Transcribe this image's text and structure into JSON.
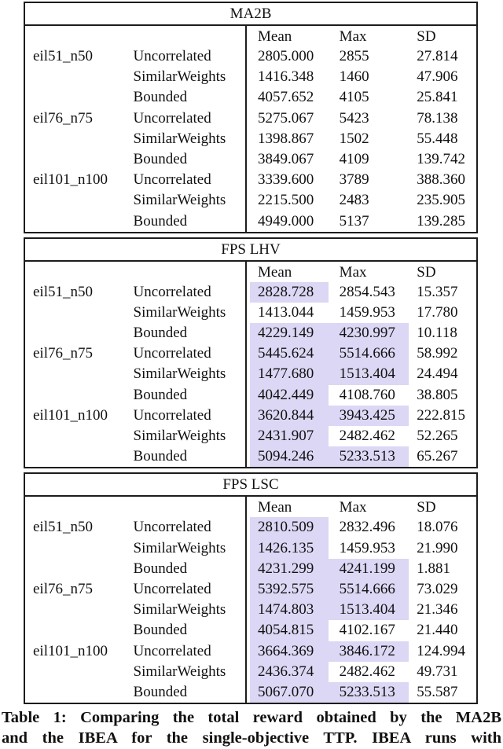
{
  "colors": {
    "highlight": "#dbd7f4",
    "border": "#1c1c1c",
    "text": "#111111"
  },
  "caption": {
    "line1": "Table 1: Comparing the total reward obtained by the MA2B",
    "line2": "and the IBEA for the single-objective TTP. IBEA runs with"
  },
  "tables": [
    {
      "title": "MA2B",
      "columns": {
        "mean": "Mean",
        "max": "Max",
        "sd": "SD"
      },
      "rows": [
        {
          "instance": "eil51_n50",
          "type": "Uncorrelated",
          "mean": "2805.000",
          "max": "2855",
          "sd": "27.814",
          "hl_mean": false,
          "hl_max": false
        },
        {
          "instance": "",
          "type": "SimilarWeights",
          "mean": "1416.348",
          "max": "1460",
          "sd": "47.906",
          "hl_mean": false,
          "hl_max": false
        },
        {
          "instance": "",
          "type": "Bounded",
          "mean": "4057.652",
          "max": "4105",
          "sd": "25.841",
          "hl_mean": false,
          "hl_max": false
        },
        {
          "instance": "eil76_n75",
          "type": "Uncorrelated",
          "mean": "5275.067",
          "max": "5423",
          "sd": "78.138",
          "hl_mean": false,
          "hl_max": false
        },
        {
          "instance": "",
          "type": "SimilarWeights",
          "mean": "1398.867",
          "max": "1502",
          "sd": "55.448",
          "hl_mean": false,
          "hl_max": false
        },
        {
          "instance": "",
          "type": "Bounded",
          "mean": "3849.067",
          "max": "4109",
          "sd": "139.742",
          "hl_mean": false,
          "hl_max": false
        },
        {
          "instance": "eil101_n100",
          "type": "Uncorrelated",
          "mean": "3339.600",
          "max": "3789",
          "sd": "388.360",
          "hl_mean": false,
          "hl_max": false
        },
        {
          "instance": "",
          "type": "SimilarWeights",
          "mean": "2215.500",
          "max": "2483",
          "sd": "235.905",
          "hl_mean": false,
          "hl_max": false
        },
        {
          "instance": "",
          "type": "Bounded",
          "mean": "4949.000",
          "max": "5137",
          "sd": "139.285",
          "hl_mean": false,
          "hl_max": false
        }
      ]
    },
    {
      "title": "FPS LHV",
      "columns": {
        "mean": "Mean",
        "max": "Max",
        "sd": "SD"
      },
      "rows": [
        {
          "instance": "eil51_n50",
          "type": "Uncorrelated",
          "mean": "2828.728",
          "max": "2854.543",
          "sd": "15.357",
          "hl_mean": true,
          "hl_max": false
        },
        {
          "instance": "",
          "type": "SimilarWeights",
          "mean": "1413.044",
          "max": "1459.953",
          "sd": "17.780",
          "hl_mean": false,
          "hl_max": false
        },
        {
          "instance": "",
          "type": "Bounded",
          "mean": "4229.149",
          "max": "4230.997",
          "sd": "10.118",
          "hl_mean": true,
          "hl_max": true
        },
        {
          "instance": "eil76_n75",
          "type": "Uncorrelated",
          "mean": "5445.624",
          "max": "5514.666",
          "sd": "58.992",
          "hl_mean": true,
          "hl_max": true
        },
        {
          "instance": "",
          "type": "SimilarWeights",
          "mean": "1477.680",
          "max": "1513.404",
          "sd": "24.494",
          "hl_mean": true,
          "hl_max": true
        },
        {
          "instance": "",
          "type": "Bounded",
          "mean": "4042.449",
          "max": "4108.760",
          "sd": "38.805",
          "hl_mean": true,
          "hl_max": false
        },
        {
          "instance": "eil101_n100",
          "type": "Uncorrelated",
          "mean": "3620.844",
          "max": "3943.425",
          "sd": "222.815",
          "hl_mean": true,
          "hl_max": true
        },
        {
          "instance": "",
          "type": "SimilarWeights",
          "mean": "2431.907",
          "max": "2482.462",
          "sd": "52.265",
          "hl_mean": true,
          "hl_max": false
        },
        {
          "instance": "",
          "type": "Bounded",
          "mean": "5094.246",
          "max": "5233.513",
          "sd": "65.267",
          "hl_mean": true,
          "hl_max": true
        }
      ]
    },
    {
      "title": "FPS LSC",
      "columns": {
        "mean": "Mean",
        "max": "Max",
        "sd": "SD"
      },
      "rows": [
        {
          "instance": "eil51_n50",
          "type": "Uncorrelated",
          "mean": "2810.509",
          "max": "2832.496",
          "sd": "18.076",
          "hl_mean": true,
          "hl_max": false
        },
        {
          "instance": "",
          "type": "SimilarWeights",
          "mean": "1426.135",
          "max": "1459.953",
          "sd": "21.990",
          "hl_mean": true,
          "hl_max": false
        },
        {
          "instance": "",
          "type": "Bounded",
          "mean": "4231.299",
          "max": "4241.199",
          "sd": "1.881",
          "hl_mean": true,
          "hl_max": true
        },
        {
          "instance": "eil76_n75",
          "type": "Uncorrelated",
          "mean": "5392.575",
          "max": "5514.666",
          "sd": "73.029",
          "hl_mean": true,
          "hl_max": true
        },
        {
          "instance": "",
          "type": "SimilarWeights",
          "mean": "1474.803",
          "max": "1513.404",
          "sd": "21.346",
          "hl_mean": true,
          "hl_max": true
        },
        {
          "instance": "",
          "type": "Bounded",
          "mean": "4054.815",
          "max": "4102.167",
          "sd": "21.440",
          "hl_mean": true,
          "hl_max": false
        },
        {
          "instance": "eil101_n100",
          "type": "Uncorrelated",
          "mean": "3664.369",
          "max": "3846.172",
          "sd": "124.994",
          "hl_mean": true,
          "hl_max": true
        },
        {
          "instance": "",
          "type": "SimilarWeights",
          "mean": "2436.374",
          "max": "2482.462",
          "sd": "49.731",
          "hl_mean": true,
          "hl_max": false
        },
        {
          "instance": "",
          "type": "Bounded",
          "mean": "5067.070",
          "max": "5233.513",
          "sd": "55.587",
          "hl_mean": true,
          "hl_max": true
        }
      ]
    }
  ]
}
